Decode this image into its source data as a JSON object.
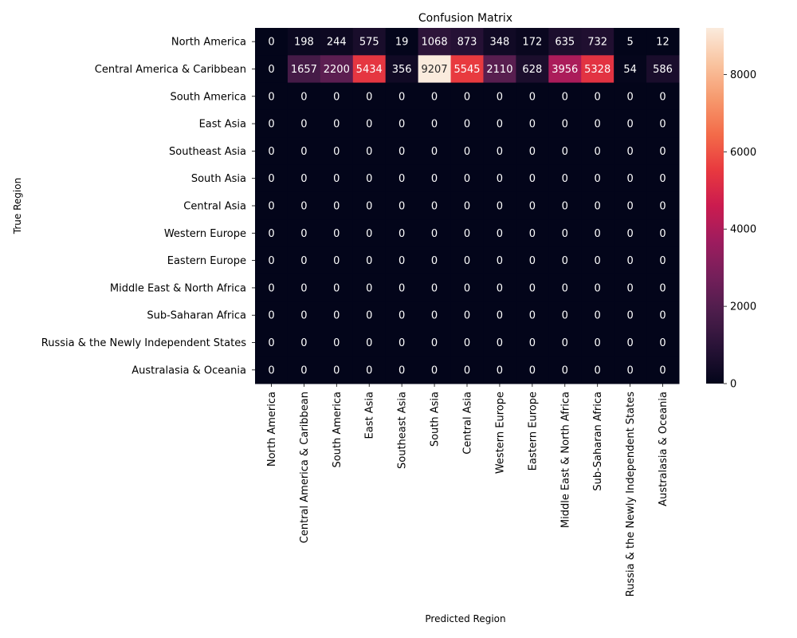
{
  "chart_data": {
    "type": "heatmap",
    "title": "Confusion Matrix",
    "xlabel": "Predicted Region",
    "ylabel": "True Region",
    "x_categories": [
      "North America",
      "Central America & Caribbean",
      "South America",
      "East Asia",
      "Southeast Asia",
      "South Asia",
      "Central Asia",
      "Western Europe",
      "Eastern Europe",
      "Middle East & North Africa",
      "Sub-Saharan Africa",
      "Russia & the Newly Independent States",
      "Australasia & Oceania"
    ],
    "y_categories": [
      "North America",
      "Central America & Caribbean",
      "South America",
      "East Asia",
      "Southeast Asia",
      "South Asia",
      "Central Asia",
      "Western Europe",
      "Eastern Europe",
      "Middle East & North Africa",
      "Sub-Saharan Africa",
      "Russia & the Newly Independent States",
      "Australasia & Oceania"
    ],
    "values": [
      [
        0,
        198,
        244,
        575,
        19,
        1068,
        873,
        348,
        172,
        635,
        732,
        5,
        12
      ],
      [
        0,
        1657,
        2200,
        5434,
        356,
        9207,
        5545,
        2110,
        628,
        3956,
        5328,
        54,
        586
      ],
      [
        0,
        0,
        0,
        0,
        0,
        0,
        0,
        0,
        0,
        0,
        0,
        0,
        0
      ],
      [
        0,
        0,
        0,
        0,
        0,
        0,
        0,
        0,
        0,
        0,
        0,
        0,
        0
      ],
      [
        0,
        0,
        0,
        0,
        0,
        0,
        0,
        0,
        0,
        0,
        0,
        0,
        0
      ],
      [
        0,
        0,
        0,
        0,
        0,
        0,
        0,
        0,
        0,
        0,
        0,
        0,
        0
      ],
      [
        0,
        0,
        0,
        0,
        0,
        0,
        0,
        0,
        0,
        0,
        0,
        0,
        0
      ],
      [
        0,
        0,
        0,
        0,
        0,
        0,
        0,
        0,
        0,
        0,
        0,
        0,
        0
      ],
      [
        0,
        0,
        0,
        0,
        0,
        0,
        0,
        0,
        0,
        0,
        0,
        0,
        0
      ],
      [
        0,
        0,
        0,
        0,
        0,
        0,
        0,
        0,
        0,
        0,
        0,
        0,
        0
      ],
      [
        0,
        0,
        0,
        0,
        0,
        0,
        0,
        0,
        0,
        0,
        0,
        0,
        0
      ],
      [
        0,
        0,
        0,
        0,
        0,
        0,
        0,
        0,
        0,
        0,
        0,
        0,
        0
      ],
      [
        0,
        0,
        0,
        0,
        0,
        0,
        0,
        0,
        0,
        0,
        0,
        0,
        0
      ]
    ],
    "colorbar": {
      "min": 0,
      "max": 9207,
      "ticks": [
        0,
        2000,
        4000,
        6000,
        8000
      ],
      "colormap": "rocket"
    },
    "grid": false
  }
}
